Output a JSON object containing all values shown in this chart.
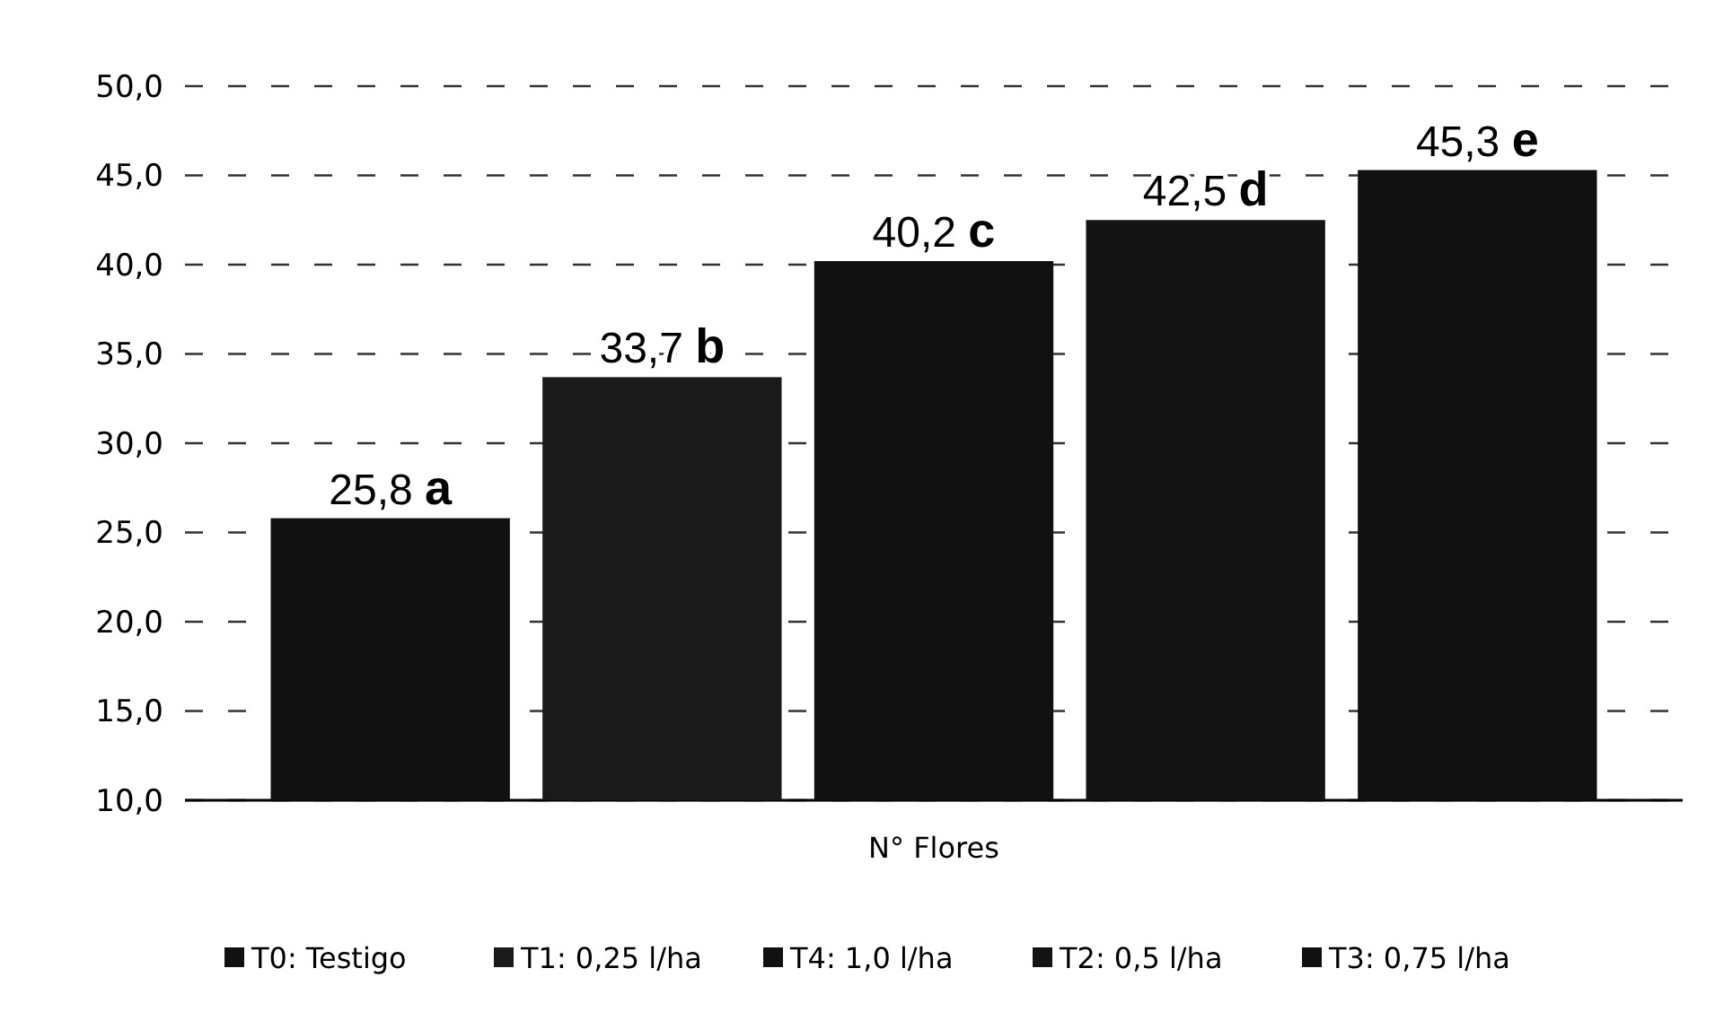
{
  "chart_data": {
    "type": "bar",
    "categories": [
      "N° Flores"
    ],
    "series": [
      {
        "name": "T0: Testigo",
        "color": "#111111",
        "values": [
          25.8
        ],
        "value_labels": [
          "25,8 a"
        ]
      },
      {
        "name": "T1: 0,25 l/ha",
        "color": "#1a1a1a",
        "values": [
          33.7
        ],
        "value_labels": [
          "33,7 b"
        ]
      },
      {
        "name": "T4: 1,0 l/ha",
        "color": "#111111",
        "values": [
          40.2
        ],
        "value_labels": [
          "40,2 c"
        ]
      },
      {
        "name": "T2: 0,5 l/ha",
        "color": "#141414",
        "values": [
          42.5
        ],
        "value_labels": [
          "42,5 d"
        ]
      },
      {
        "name": "T3: 0,75 l/ha",
        "color": "#111111",
        "values": [
          45.3
        ],
        "value_labels": [
          "45,3 e"
        ]
      }
    ],
    "ylim": [
      10,
      50
    ],
    "yticks": [
      {
        "value": 10,
        "label": "10,0"
      },
      {
        "value": 15,
        "label": "15,0"
      },
      {
        "value": 20,
        "label": "20,0"
      },
      {
        "value": 25,
        "label": "25,0"
      },
      {
        "value": 30,
        "label": "30,0"
      },
      {
        "value": 35,
        "label": "35,0"
      },
      {
        "value": 40,
        "label": "40,0"
      },
      {
        "value": 45,
        "label": "45,0"
      },
      {
        "value": 50,
        "label": "50,0"
      }
    ],
    "grid": "y",
    "legend": "bottom"
  }
}
